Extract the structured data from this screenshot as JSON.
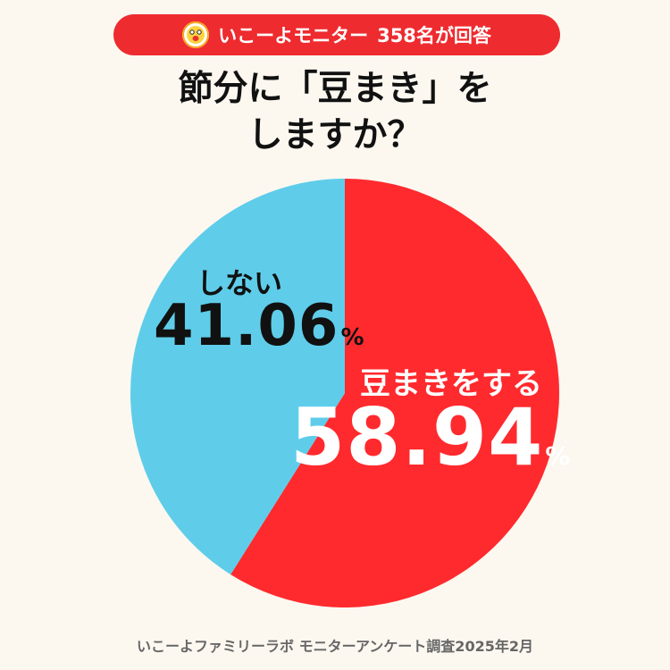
{
  "badge": {
    "brand": "いこーよモニター",
    "respondents": "358名が回答"
  },
  "title": {
    "line1": "節分に「豆まき」を",
    "line2": "しますか？"
  },
  "chart_data": {
    "type": "pie",
    "title": "節分に「豆まき」をしますか？",
    "labels": [
      "豆まきをする",
      "しない"
    ],
    "values": [
      58.94,
      41.06
    ],
    "unit": "%",
    "colors": [
      "#ff2a2e",
      "#5fcdea"
    ],
    "value_labels": [
      "58.94",
      "41.06"
    ]
  },
  "footer": {
    "source": "いこーよファミリーラボ モニターアンケート調査2025年2月"
  }
}
